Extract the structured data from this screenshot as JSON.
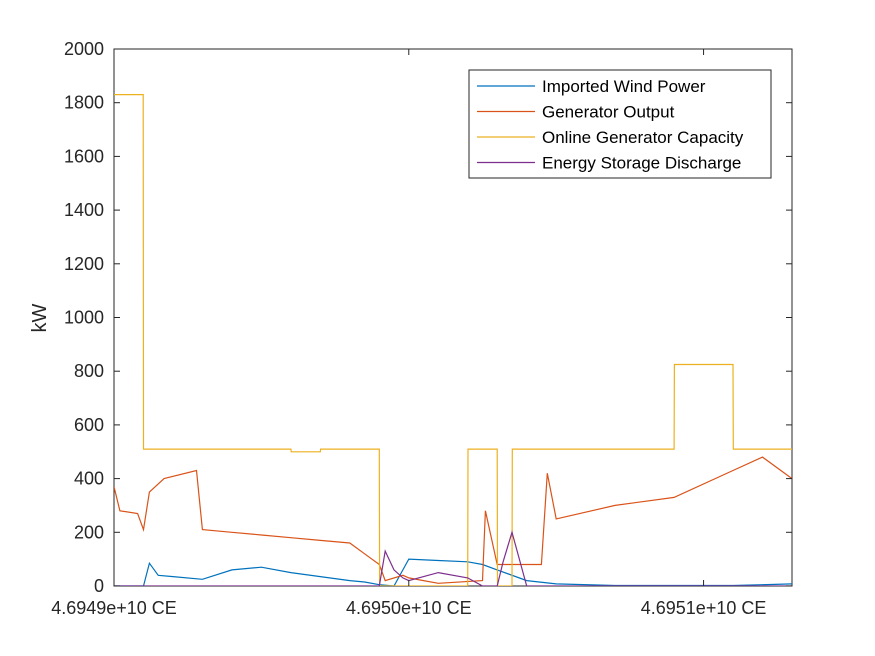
{
  "chart_data": {
    "type": "line",
    "title": "",
    "xlabel": "",
    "ylabel": "kW",
    "ylim": [
      0,
      2000
    ],
    "yticks": [
      0,
      200,
      400,
      600,
      800,
      1000,
      1200,
      1400,
      1600,
      1800,
      2000
    ],
    "ytick_labels": [
      "0",
      "200",
      "400",
      "600",
      "800",
      "1000",
      "1200",
      "1400",
      "1600",
      "1800",
      "2000"
    ],
    "xlim": [
      46949000000.0,
      46951300000.0
    ],
    "xticks": [
      46949000000.0,
      46950000000.0,
      46951000000.0
    ],
    "xtick_labels": [
      "4.6949e+10 CE",
      "4.6950e+10 CE",
      "4.6951e+10 CE"
    ],
    "grid": false,
    "legend_position": "top-right",
    "series": [
      {
        "name": "Imported Wind Power",
        "color": "#0072BD",
        "x": [
          46949000000.0,
          46949100000.0,
          46949120000.0,
          46949150000.0,
          46949200000.0,
          46949300000.0,
          46949400000.0,
          46949500000.0,
          46949600000.0,
          46949700000.0,
          46949800000.0,
          46949850000.0,
          46949900000.0,
          46949950000.0,
          46950000000.0,
          46950100000.0,
          46950200000.0,
          46950250000.0,
          46950300000.0,
          46950400000.0,
          46950500000.0,
          46950700000.0,
          46950900000.0,
          46951100000.0,
          46951300000.0
        ],
        "y": [
          0,
          0,
          85,
          40,
          35,
          25,
          60,
          70,
          50,
          35,
          20,
          15,
          5,
          0,
          100,
          95,
          90,
          80,
          60,
          20,
          8,
          2,
          2,
          2,
          8
        ]
      },
      {
        "name": "Generator Output",
        "color": "#D95319",
        "x": [
          46949000000.0,
          46949020000.0,
          46949080000.0,
          46949100000.0,
          46949120000.0,
          46949170000.0,
          46949280000.0,
          46949300000.0,
          46949400000.0,
          46949500000.0,
          46949600000.0,
          46949700000.0,
          46949800000.0,
          46949850000.0,
          46949900000.0,
          46949920000.0,
          46949980000.0,
          46950000000.0,
          46950050000.0,
          46950100000.0,
          46950250000.0,
          46950260000.0,
          46950300000.0,
          46950400000.0,
          46950450000.0,
          46950470000.0,
          46950500000.0,
          46950700000.0,
          46950900000.0,
          46951100000.0,
          46951200000.0,
          46951300000.0
        ],
        "y": [
          370,
          280,
          270,
          210,
          350,
          400,
          430,
          210,
          200,
          190,
          180,
          170,
          160,
          120,
          80,
          20,
          40,
          30,
          20,
          10,
          20,
          280,
          80,
          80,
          80,
          420,
          250,
          300,
          330,
          430,
          480,
          400
        ]
      },
      {
        "name": "Online Generator Capacity",
        "color": "#EDB120",
        "x": [
          46949000000.0,
          46949099000.0,
          46949100000.0,
          46949600000.0,
          46949601000.0,
          46949700000.0,
          46949701000.0,
          46949900000.0,
          46949901000.0,
          46950200000.0,
          46950201000.0,
          46950300000.0,
          46950301000.0,
          46950350000.0,
          46950351000.0,
          46950900000.0,
          46950901000.0,
          46951100000.0,
          46951101000.0,
          46951300000.0
        ],
        "y": [
          1830,
          1830,
          510,
          510,
          500,
          500,
          510,
          510,
          0,
          0,
          510,
          510,
          0,
          0,
          510,
          510,
          825,
          825,
          510,
          510
        ]
      },
      {
        "name": "Energy Storage Discharge",
        "color": "#7E2F8E",
        "x": [
          46949000000.0,
          46949900000.0,
          46949920000.0,
          46949950000.0,
          46949980000.0,
          46950000000.0,
          46950100000.0,
          46950200000.0,
          46950250000.0,
          46950300000.0,
          46950320000.0,
          46950350000.0,
          46950400000.0,
          46951300000.0
        ],
        "y": [
          0,
          0,
          130,
          60,
          30,
          20,
          50,
          30,
          0,
          0,
          90,
          200,
          0,
          0
        ]
      }
    ]
  }
}
